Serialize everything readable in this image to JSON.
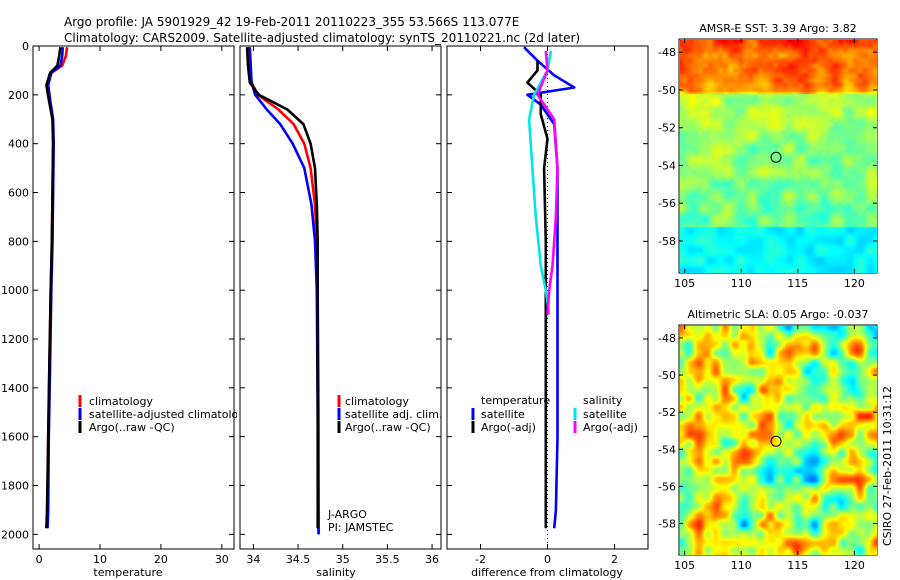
{
  "header": {
    "line1": "Argo profile: JA 5901929_42 19-Feb-2011 20110223_355 53.566S 113.077E",
    "line2": "Climatology: CARS2009. Satellite-adjusted climatology: synTS_20110221.nc (2d later)"
  },
  "side_label": "CSIRO 27-Feb-2011 10:31:12",
  "colors": {
    "climatology": "#ff0000",
    "satellite": "#0000ff",
    "argo": "#000000",
    "sal_satellite": "#00e5e5",
    "sal_argo": "#ff00ff"
  },
  "chart_data": [
    {
      "type": "line",
      "id": "temperature",
      "xlabel": "temperature",
      "ylabel": "",
      "xlim": [
        -1,
        32
      ],
      "ylim": [
        2060,
        0
      ],
      "xticks": [
        0,
        10,
        20,
        30
      ],
      "xtick_labels": [
        "0",
        "10",
        "20",
        "30"
      ],
      "yticks": [
        0,
        200,
        400,
        600,
        800,
        1000,
        1200,
        1400,
        1600,
        1800,
        2000
      ],
      "ytick_labels": [
        "0",
        "200",
        "400",
        "600",
        "800",
        "1000",
        "1200",
        "1400",
        "1600",
        "1800",
        "2000"
      ],
      "legend": [
        "climatology",
        "satellite-adjusted climatology",
        "Argo(..raw -QC)"
      ],
      "series": [
        {
          "name": "climatology",
          "color": "#ff0000",
          "x": [
            4.6,
            4.4,
            3.8,
            2.0,
            1.3,
            1.7,
            2.2,
            2.3,
            2.2,
            2.1,
            1.9,
            1.7,
            1.5,
            1.4,
            1.3
          ],
          "y": [
            5,
            40,
            80,
            110,
            160,
            220,
            300,
            400,
            600,
            800,
            1000,
            1300,
            1600,
            1900,
            1975
          ]
        },
        {
          "name": "satellite-adjusted climatology",
          "color": "#0000ff",
          "x": [
            3.9,
            3.8,
            3.5,
            2.0,
            1.5,
            1.8,
            2.3,
            2.4,
            2.3,
            2.2,
            2.0,
            1.8,
            1.6,
            1.5,
            1.4
          ],
          "y": [
            5,
            40,
            80,
            110,
            160,
            220,
            300,
            400,
            600,
            800,
            1000,
            1300,
            1600,
            1900,
            1975
          ]
        },
        {
          "name": "Argo(..raw -QC)",
          "color": "#000000",
          "x": [
            3.5,
            3.3,
            3.0,
            1.8,
            1.2,
            1.6,
            2.2,
            2.3,
            2.2,
            2.1,
            1.9,
            1.7,
            1.5,
            1.3,
            1.2
          ],
          "y": [
            5,
            40,
            80,
            110,
            160,
            220,
            300,
            400,
            600,
            800,
            1000,
            1300,
            1600,
            1900,
            1975
          ]
        }
      ]
    },
    {
      "type": "line",
      "id": "salinity",
      "xlabel": "salinity",
      "xlim": [
        33.85,
        36.1
      ],
      "ylim": [
        2060,
        0
      ],
      "xticks": [
        34,
        34.5,
        35,
        35.5,
        36
      ],
      "xtick_labels": [
        "34",
        "34.5",
        "35",
        "35.5",
        "36"
      ],
      "legend": [
        "climatology",
        "satellite adj. clim.",
        "Argo(..raw -QC)"
      ],
      "annotation": [
        "J-ARGO",
        "PI: JAMSTEC"
      ],
      "series": [
        {
          "name": "climatology",
          "color": "#ff0000",
          "x": [
            33.95,
            33.96,
            33.98,
            34.05,
            34.28,
            34.45,
            34.57,
            34.64,
            34.69,
            34.71,
            34.72,
            34.73,
            34.73
          ],
          "y": [
            5,
            80,
            150,
            200,
            260,
            320,
            400,
            500,
            650,
            800,
            1000,
            1500,
            2000
          ]
        },
        {
          "name": "satellite adj. clim.",
          "color": "#0000ff",
          "x": [
            33.96,
            33.97,
            33.98,
            34.02,
            34.15,
            34.3,
            34.44,
            34.57,
            34.65,
            34.69,
            34.71,
            34.72,
            34.73
          ],
          "y": [
            5,
            80,
            150,
            200,
            260,
            320,
            400,
            500,
            650,
            800,
            1000,
            1500,
            2000
          ]
        },
        {
          "name": "Argo(..raw -QC)",
          "color": "#000000",
          "x": [
            33.93,
            33.94,
            33.96,
            34.06,
            34.38,
            34.56,
            34.64,
            34.69,
            34.71,
            34.72,
            34.72,
            34.72,
            34.72
          ],
          "y": [
            5,
            80,
            150,
            200,
            260,
            320,
            400,
            500,
            650,
            800,
            1000,
            1500,
            1975
          ]
        }
      ]
    },
    {
      "type": "line",
      "id": "difference",
      "xlabel": "difference from climatology",
      "xlim": [
        -3.0,
        3.0
      ],
      "ylim": [
        2060,
        0
      ],
      "xticks": [
        -2,
        0,
        2
      ],
      "xtick_labels": [
        "-2",
        "0",
        "2"
      ],
      "legend_headers": [
        "temperature",
        "salinity"
      ],
      "legend": [
        "satellite",
        "Argo(-adj)",
        "satellite",
        "Argo(-adj)"
      ],
      "series": [
        {
          "name": "temperature satellite",
          "color": "#0000ff",
          "x": [
            -0.7,
            -0.3,
            0.2,
            0.8,
            -0.6,
            -0.2,
            0.2,
            0.3,
            0.3,
            0.3,
            0.3,
            0.25,
            0.2
          ],
          "y": [
            5,
            60,
            120,
            170,
            200,
            240,
            320,
            500,
            800,
            1200,
            1600,
            1900,
            1975
          ]
        },
        {
          "name": "temperature Argo(-adj)",
          "color": "#000000",
          "x": [
            -0.3,
            -0.3,
            -0.6,
            -0.2,
            -0.2,
            0.0,
            -0.1,
            -0.05,
            -0.05,
            -0.05,
            -0.05,
            -0.05
          ],
          "y": [
            60,
            100,
            150,
            200,
            280,
            380,
            500,
            800,
            1200,
            1600,
            1900,
            1975
          ]
        },
        {
          "name": "salinity satellite",
          "color": "#00e5e5",
          "x": [
            0.1,
            0.0,
            -0.4,
            -0.55,
            -0.45,
            -0.35,
            -0.2,
            -0.05,
            0.05
          ],
          "y": [
            20,
            100,
            200,
            300,
            500,
            700,
            900,
            1000,
            1100
          ]
        },
        {
          "name": "salinity Argo(-adj)",
          "color": "#ff00ff",
          "x": [
            -0.05,
            0.0,
            -0.3,
            0.2,
            0.3,
            0.25,
            0.15,
            0.05,
            0.0
          ],
          "y": [
            20,
            100,
            200,
            300,
            500,
            700,
            900,
            1000,
            1100
          ]
        }
      ]
    },
    {
      "type": "heatmap",
      "id": "sst",
      "title": "AMSR-E SST: 3.39 Argo: 3.82",
      "xlim": [
        104.5,
        122
      ],
      "ylim": [
        -59.7,
        -47.3
      ],
      "xticks": [
        105,
        110,
        115,
        120
      ],
      "xtick_labels": [
        "105",
        "110",
        "115",
        "120"
      ],
      "yticks": [
        -48,
        -50,
        -52,
        -54,
        -56,
        -58
      ],
      "ytick_labels": [
        "-48",
        "-50",
        "-52",
        "-54",
        "-56",
        "-58"
      ],
      "marker": {
        "lon": 113.077,
        "lat": -53.566
      }
    },
    {
      "type": "heatmap",
      "id": "sla",
      "title": "Altimetric SLA: 0.05 Argo: -0.037",
      "xlim": [
        104.5,
        122
      ],
      "ylim": [
        -59.7,
        -47.3
      ],
      "xticks": [
        105,
        110,
        115,
        120
      ],
      "xtick_labels": [
        "105",
        "110",
        "115",
        "120"
      ],
      "yticks": [
        -48,
        -50,
        -52,
        -54,
        -56,
        -58
      ],
      "ytick_labels": [
        "-48",
        "-50",
        "-52",
        "-54",
        "-56",
        "-58"
      ],
      "marker": {
        "lon": 113.077,
        "lat": -53.566
      }
    }
  ],
  "legends": {
    "temp": [
      "climatology",
      "satellite-adjusted climatology",
      "Argo(..raw -QC)"
    ],
    "sal": [
      "climatology",
      "satellite adj. clim.",
      "Argo(..raw -QC)"
    ],
    "diff_headers": [
      "temperature",
      "salinity"
    ],
    "diff": [
      "satellite",
      "Argo(-adj)",
      "satellite",
      "Argo(-adj)"
    ]
  }
}
